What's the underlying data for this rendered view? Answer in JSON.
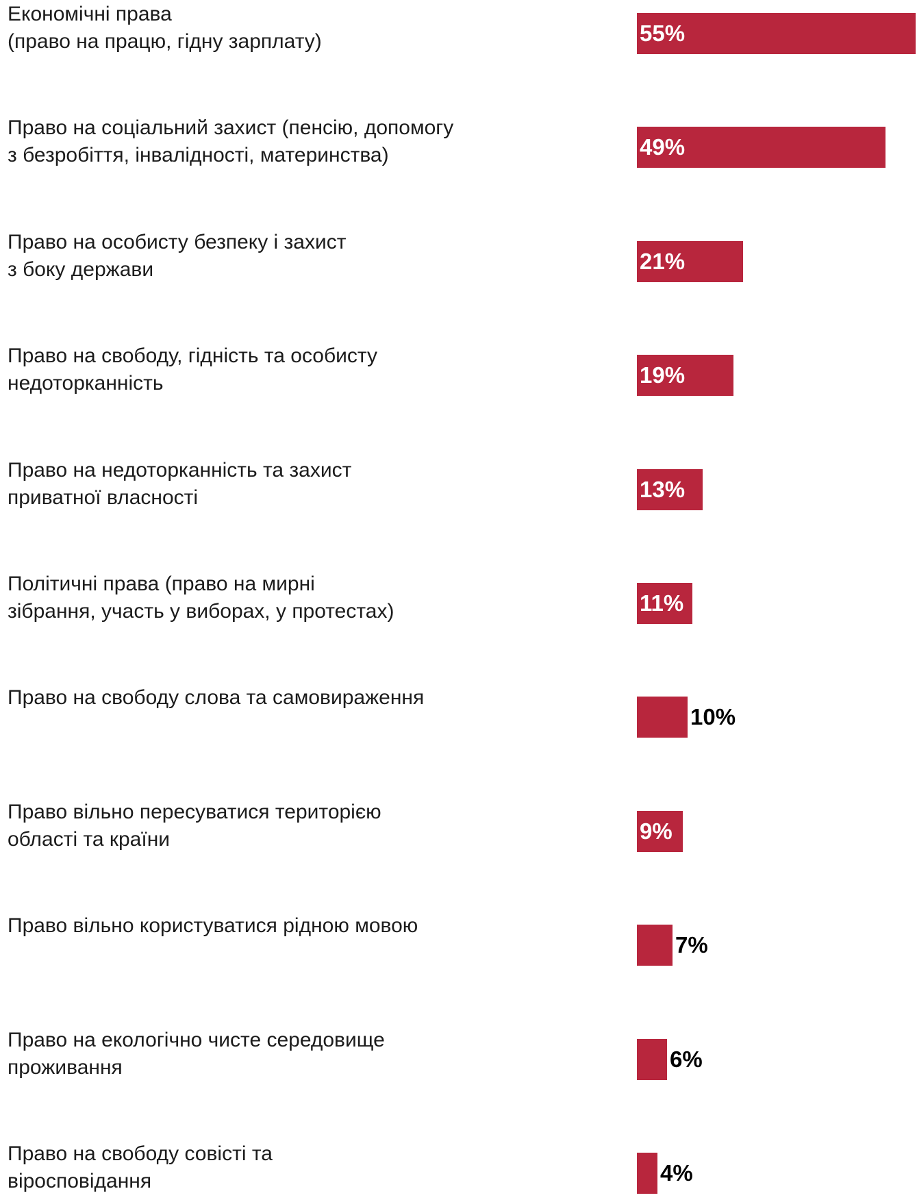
{
  "chart_data": {
    "type": "bar",
    "orientation": "horizontal",
    "categories": [
      "Економічні права\n(право на працю, гідну зарплату)",
      "Право на соціальний захист  (пенсію, допомогу\nз безробіття, інвалідності, материнства)",
      "Право на особисту безпеку і захист\nз боку держави",
      "Право на свободу, гідність та особисту\nнедоторканність",
      "Право на недоторканність та захист\nприватної власності",
      "Політичні права (право на мирні\nзібрання, участь у виборах, у протестах)",
      "Право на свободу слова та самовираження",
      "Право вільно пересуватися територією\nобласті та країни",
      "Право вільно користуватися рідною мовою",
      "Право на екологічно чисте середовище\nпроживання",
      "Право на свободу совісті та\nвіросповідання"
    ],
    "values": [
      55,
      49,
      21,
      19,
      13,
      11,
      10,
      9,
      7,
      6,
      4
    ],
    "value_labels": [
      "55%",
      "49%",
      "21%",
      "19%",
      "13%",
      "11%",
      "10%",
      "9%",
      "7%",
      "6%",
      "4%"
    ],
    "unit": "%",
    "xlim": [
      0,
      55
    ],
    "grid": false,
    "colors": {
      "bar": "#b8263d",
      "label_inside": "#ffffff",
      "label_outside": "#000000",
      "category_text": "#1c1c1c"
    }
  }
}
